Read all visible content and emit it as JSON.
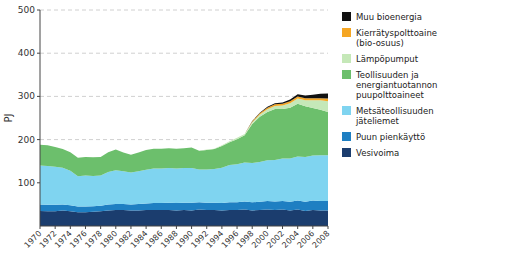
{
  "chart_data": {
    "type": "area",
    "stacked": true,
    "y_label": "PJ",
    "x": [
      1970,
      1971,
      1972,
      1973,
      1974,
      1975,
      1976,
      1977,
      1978,
      1979,
      1980,
      1981,
      1982,
      1983,
      1984,
      1985,
      1986,
      1987,
      1988,
      1989,
      1990,
      1991,
      1992,
      1993,
      1994,
      1995,
      1996,
      1997,
      1998,
      1999,
      2000,
      2001,
      2002,
      2003,
      2004,
      2005,
      2006,
      2007,
      2008
    ],
    "series": [
      {
        "name": "Vesivoima",
        "color": "#1b3d6e",
        "values": [
          35,
          34,
          34,
          36,
          34,
          32,
          32,
          33,
          34,
          36,
          37,
          37,
          36,
          36,
          37,
          37,
          37,
          37,
          36,
          37,
          36,
          38,
          37,
          37,
          36,
          37,
          37,
          38,
          36,
          37,
          38,
          37,
          38,
          36,
          38,
          35,
          37,
          36,
          36
        ]
      },
      {
        "name": "Puun pienkäyttö",
        "color": "#1e7fc2",
        "values": [
          15,
          15,
          15,
          14,
          14,
          13,
          13,
          13,
          13,
          14,
          14,
          14,
          14,
          15,
          15,
          16,
          16,
          17,
          17,
          17,
          18,
          17,
          17,
          17,
          17,
          18,
          18,
          19,
          19,
          19,
          20,
          20,
          20,
          20,
          21,
          21,
          22,
          22,
          22
        ]
      },
      {
        "name": "Metsäteollisuuden\njäteliemet",
        "color": "#7fd4f0",
        "values": [
          90,
          90,
          88,
          85,
          80,
          70,
          72,
          70,
          70,
          75,
          78,
          76,
          74,
          76,
          78,
          80,
          80,
          80,
          80,
          80,
          80,
          76,
          77,
          78,
          82,
          86,
          88,
          90,
          91,
          92,
          94,
          96,
          98,
          100,
          102,
          104,
          104,
          106,
          106
        ]
      },
      {
        "name": "Teollisuuden ja\nenergia­ntuotannon\npuupolttoaineet",
        "color": "#6cbf6c",
        "values": [
          48,
          48,
          46,
          43,
          43,
          43,
          43,
          43,
          43,
          46,
          48,
          43,
          41,
          43,
          46,
          46,
          46,
          46,
          46,
          46,
          48,
          43,
          45,
          46,
          50,
          53,
          58,
          63,
          90,
          105,
          112,
          118,
          115,
          118,
          122,
          117,
          110,
          105,
          100
        ]
      },
      {
        "name": "Lämpöpumput",
        "color": "#c5e8b8",
        "values": [
          0,
          0,
          0,
          0,
          0,
          0,
          0,
          0,
          0,
          0,
          0,
          0,
          0,
          0,
          0,
          0,
          0,
          0,
          0,
          0,
          0,
          0,
          1,
          1,
          2,
          2,
          3,
          3,
          4,
          5,
          6,
          7,
          8,
          10,
          12,
          14,
          18,
          22,
          25
        ]
      },
      {
        "name": "Kierrätyspolttoaine\n(bio-osuus)",
        "color": "#f5a623",
        "values": [
          0,
          0,
          0,
          0,
          0,
          0,
          0,
          0,
          0,
          0,
          0,
          0,
          0,
          0,
          0,
          0,
          0,
          0,
          0,
          0,
          0,
          0,
          0,
          0,
          0,
          0,
          0,
          0,
          2,
          3,
          4,
          4,
          4,
          5,
          5,
          5,
          5,
          5,
          6
        ]
      },
      {
        "name": "Muu bioenergia",
        "color": "#111111",
        "values": [
          0,
          0,
          0,
          0,
          0,
          0,
          0,
          0,
          0,
          0,
          0,
          0,
          0,
          0,
          0,
          0,
          0,
          0,
          0,
          0,
          0,
          0,
          0,
          0,
          0,
          0,
          0,
          0,
          1,
          1,
          2,
          2,
          3,
          4,
          5,
          6,
          8,
          10,
          12
        ]
      }
    ],
    "xlim": [
      1970,
      2008
    ],
    "xticks": [
      1970,
      1972,
      1974,
      1976,
      1978,
      1980,
      1982,
      1984,
      1986,
      1988,
      1990,
      1992,
      1994,
      1996,
      1998,
      2000,
      2002,
      2004,
      2006,
      2008
    ],
    "ylim": [
      0,
      500
    ],
    "yticks": [
      100,
      200,
      300,
      400,
      500
    ],
    "grid": true,
    "legend": "right"
  }
}
